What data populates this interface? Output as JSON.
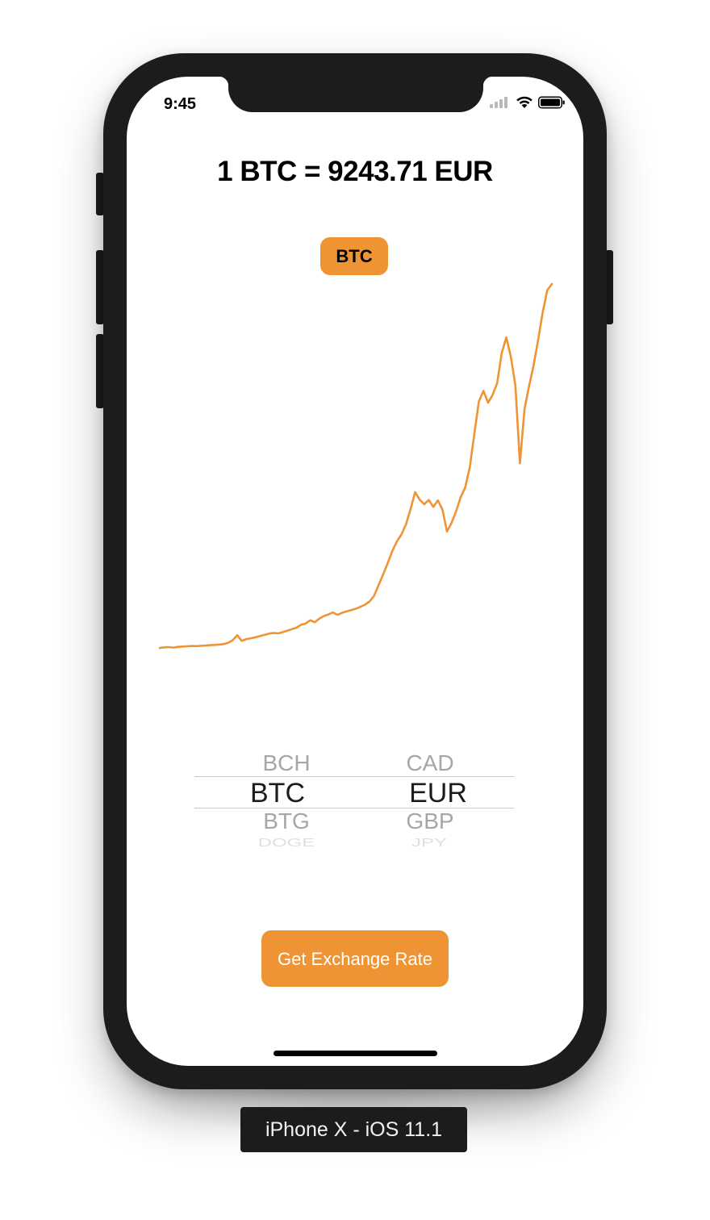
{
  "status_bar": {
    "time": "9:45"
  },
  "header": {
    "rate_text": "1 BTC = 9243.71 EUR"
  },
  "crypto_badge": {
    "label": "BTC"
  },
  "chart_data": {
    "type": "line",
    "title": "",
    "xlabel": "",
    "ylabel": "",
    "x_ticks": false,
    "y_ticks": false,
    "grid": false,
    "color": "#ef9434",
    "series": [
      {
        "values": [
          1065,
          1078,
          1083,
          1072,
          1089,
          1095,
          1101,
          1108,
          1104,
          1112,
          1118,
          1126,
          1132,
          1140,
          1152,
          1181,
          1237,
          1350,
          1223,
          1265,
          1282,
          1305,
          1333,
          1361,
          1387,
          1402,
          1391,
          1420,
          1453,
          1487,
          1521,
          1585,
          1614,
          1687,
          1642,
          1725,
          1782,
          1818,
          1863,
          1809,
          1854,
          1888,
          1915,
          1947,
          1990,
          2035,
          2108,
          2234,
          2477,
          2718,
          2973,
          3241,
          3456,
          3612,
          3841,
          4178,
          4567,
          4398,
          4295,
          4390,
          4234,
          4381,
          4174,
          3681,
          3877,
          4135,
          4453,
          4672,
          5127,
          5874,
          6612,
          6843,
          6573,
          6752,
          7014,
          7689,
          8042,
          7615,
          6962,
          5214,
          6431,
          6947,
          7418,
          7986,
          8612,
          9104,
          9243
        ]
      }
    ]
  },
  "picker": {
    "crypto": {
      "above": "BCH",
      "selected": "BTC",
      "below": "BTG",
      "below2": "DOGE"
    },
    "fiat": {
      "above": "CAD",
      "selected": "EUR",
      "below": "GBP",
      "below2": "JPY"
    }
  },
  "actions": {
    "get_rate_label": "Get Exchange Rate"
  },
  "simulator": {
    "device_label": "iPhone X - iOS 11.1"
  },
  "colors": {
    "accent": "#ef9434",
    "bezel": "#1c1c1c"
  }
}
